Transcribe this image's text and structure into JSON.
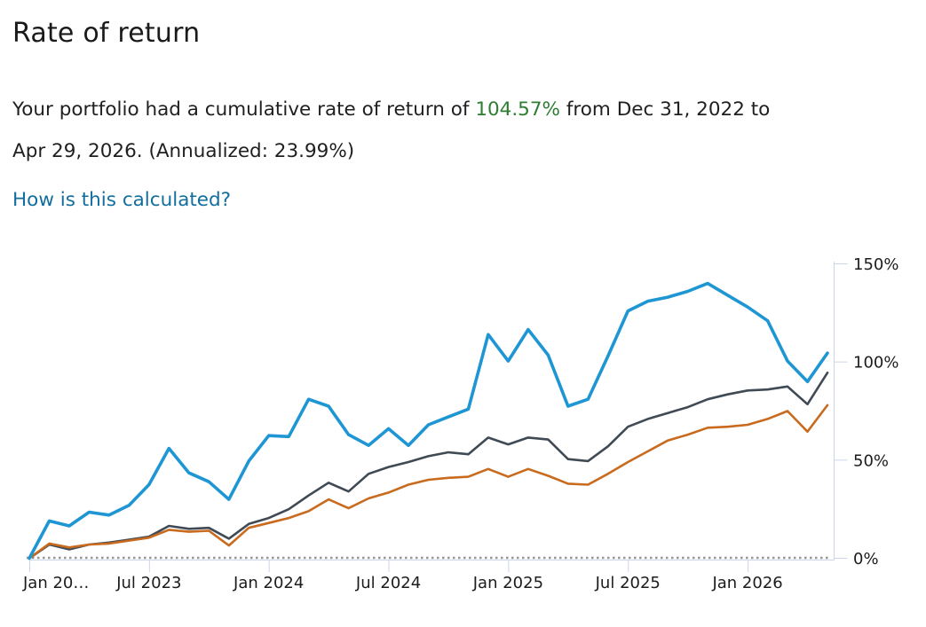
{
  "header": {
    "title": "Rate of return"
  },
  "summary": {
    "prefix": "Your portfolio had a cumulative rate of return of",
    "highlight": "104.57%",
    "suffix_line1": "from Dec 31, 2022 to",
    "line2": "Apr 29, 2026. (Annualized: 23.99%)",
    "highlight_color": "#2e7d32",
    "cumulative_return_pct": 104.57,
    "annualized_return_pct": 23.99,
    "period_start": "Dec 31, 2022",
    "period_end": "Apr 29, 2026"
  },
  "link": {
    "label": "How is this calculated?",
    "color": "#126e9e"
  },
  "chart_data": {
    "type": "line",
    "title": "",
    "legend": "none",
    "grid": "off",
    "y_axis": {
      "position": "right",
      "ticks": [
        0,
        50,
        100,
        150
      ],
      "tick_labels": [
        "0%",
        "50%",
        "100%",
        "150%"
      ],
      "max": 150,
      "min": 0,
      "unit": "%"
    },
    "x_axis": {
      "unit": "month",
      "range_start": "Dec 31, 2022",
      "range_end": "Apr 29, 2026",
      "ticks": [
        {
          "month_index": 0,
          "label": "Jan 20…"
        },
        {
          "month_index": 6,
          "label": "Jul 2023"
        },
        {
          "month_index": 12,
          "label": "Jan 2024"
        },
        {
          "month_index": 18,
          "label": "Jul 2024"
        },
        {
          "month_index": 24,
          "label": "Jan 2025"
        },
        {
          "month_index": 30,
          "label": "Jul 2025"
        },
        {
          "month_index": 36,
          "label": "Jan 2026"
        }
      ]
    },
    "zero_line": {
      "value": 0,
      "style": "dotted",
      "color": "#969696"
    },
    "axis_color": "#ccd6eb",
    "label_color": "#1c1c1c",
    "categories": [
      "Dec 2022",
      "Jan 2023",
      "Feb 2023",
      "Mar 2023",
      "Apr 2023",
      "May 2023",
      "Jun 2023",
      "Jul 2023",
      "Aug 2023",
      "Sep 2023",
      "Oct 2023",
      "Nov 2023",
      "Dec 2023",
      "Jan 2024",
      "Feb 2024",
      "Mar 2024",
      "Apr 2024",
      "May 2024",
      "Jun 2024",
      "Jul 2024",
      "Aug 2024",
      "Sep 2024",
      "Oct 2024",
      "Nov 2024",
      "Dec 2024",
      "Jan 2025",
      "Feb 2025",
      "Mar 2025",
      "Apr 2025",
      "May 2025",
      "Jun 2025",
      "Jul 2025",
      "Aug 2025",
      "Sep 2025",
      "Oct 2025",
      "Nov 2025",
      "Dec 2025",
      "Jan 2026",
      "Feb 2026",
      "Mar 2026",
      "Apr 2026"
    ],
    "series": [
      {
        "name": "Portfolio (blue line)",
        "color": "#1f96d4",
        "stroke_width": 3.6,
        "values": [
          0,
          19,
          16.5,
          23.5,
          22,
          27,
          37.5,
          56,
          43.5,
          39,
          30,
          49.5,
          62.5,
          62,
          81,
          77.5,
          63,
          57.5,
          66,
          57.5,
          68,
          72,
          76,
          114,
          100.5,
          116.5,
          103.5,
          77.5,
          81,
          103,
          126,
          131,
          133,
          136,
          140,
          134,
          128,
          121,
          100.5,
          90,
          104.57
        ]
      },
      {
        "name": "Gray line (unlabeled benchmark)",
        "color": "#3f4a54",
        "stroke_width": 2.6,
        "values": [
          0,
          7,
          4.5,
          7,
          8,
          9.5,
          11,
          16.5,
          15,
          15.5,
          10,
          17.5,
          20.5,
          25,
          32,
          38.5,
          34,
          43,
          46.5,
          49,
          52,
          54,
          53,
          61.5,
          58,
          61.5,
          60.5,
          50.5,
          49.5,
          57,
          67,
          71,
          74,
          77,
          81,
          83.5,
          85.5,
          86,
          87.5,
          78.5,
          94.5
        ]
      },
      {
        "name": "Orange line (unlabeled benchmark)",
        "color": "#c86b1e",
        "stroke_width": 2.6,
        "values": [
          0,
          7.5,
          5.5,
          7,
          7.5,
          9,
          10.5,
          14.5,
          13.5,
          14,
          6.5,
          15.5,
          18,
          20.5,
          24,
          30,
          25.5,
          30.5,
          33.5,
          37.5,
          40,
          41,
          41.5,
          45.5,
          41.5,
          45.5,
          42,
          38,
          37.5,
          43,
          49,
          54.5,
          60,
          63,
          66.5,
          67,
          68,
          71,
          75,
          64.5,
          78
        ]
      }
    ]
  }
}
